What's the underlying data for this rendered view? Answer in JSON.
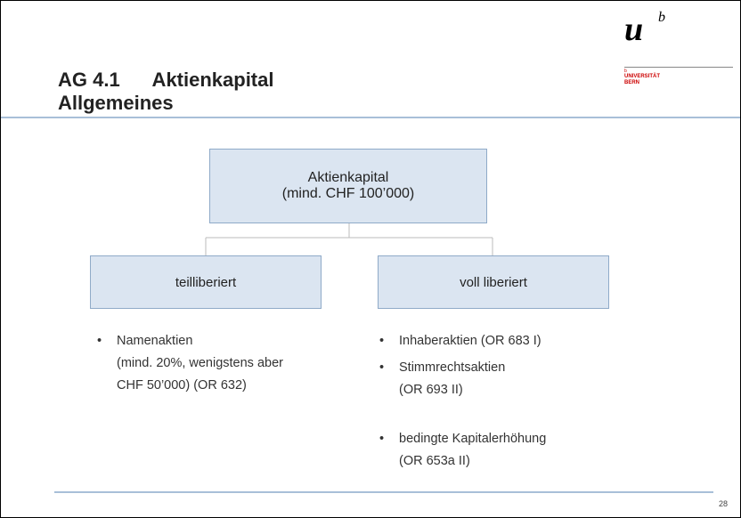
{
  "header": {
    "title_line1": "AG 4.1      Aktienkapital",
    "title_line2": "Allgemeines",
    "logo_u": "u",
    "logo_b": "b",
    "logo_small_b": "b",
    "logo_university": "UNIVERSITÄT",
    "logo_city": "BERN"
  },
  "nodes": [
    {
      "label_line1": "Aktienkapital",
      "label_line2": "(mind. CHF 100’000)"
    },
    {
      "label": "teilliberiert"
    },
    {
      "label": "voll liberiert"
    }
  ],
  "left_list": [
    {
      "bullet": "•",
      "lines": [
        "Namenaktien",
        "(mind. 20%, wenigstens aber",
        "CHF 50’000) (OR 632)"
      ]
    }
  ],
  "right_list": [
    {
      "bullet": "•",
      "lines": [
        "Inhaberaktien (OR 683 I)"
      ]
    },
    {
      "bullet": "•",
      "lines": [
        "Stimmrechtsaktien",
        "(OR 693 II)"
      ]
    },
    {
      "bullet": "•",
      "lines": [
        "bedingte Kapitalerhöhung",
        "(OR 653a II)"
      ]
    }
  ],
  "page_number": "28"
}
